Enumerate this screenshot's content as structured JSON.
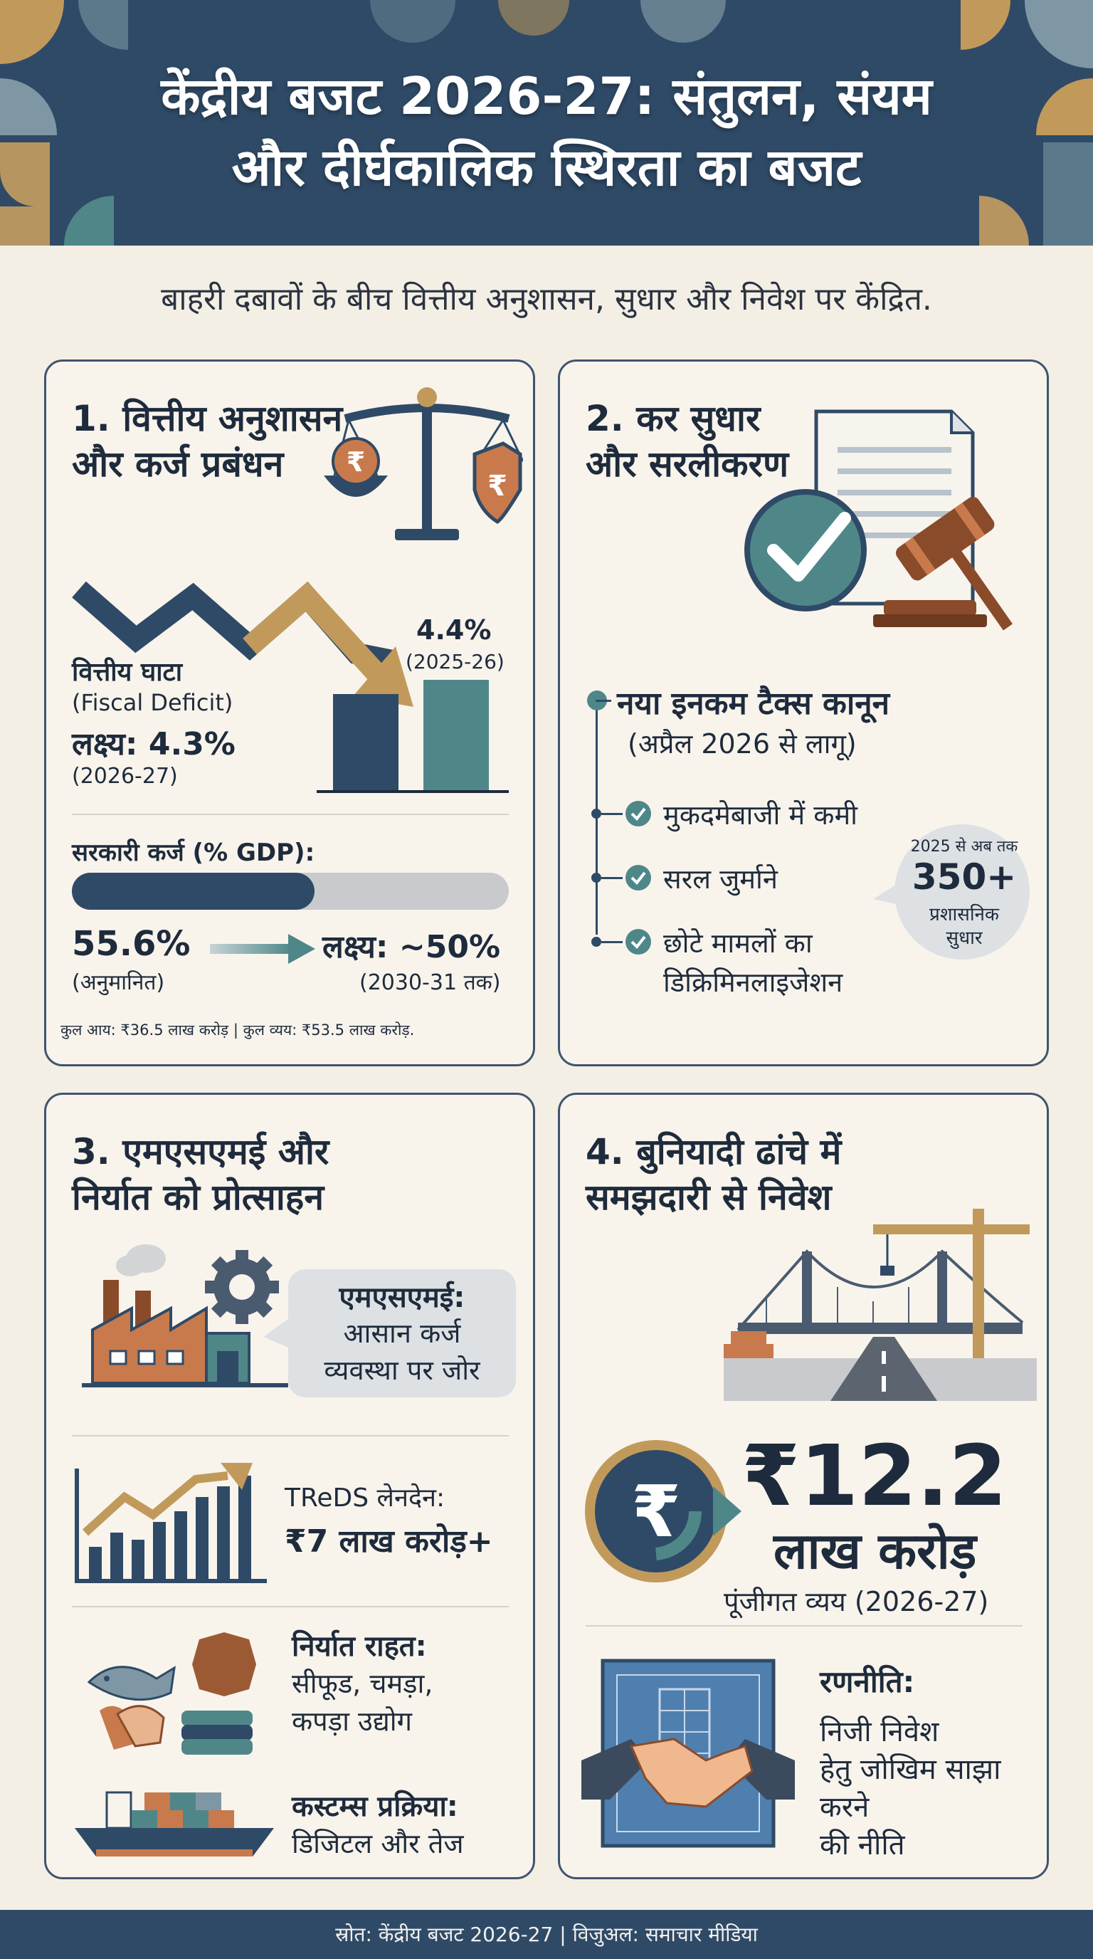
{
  "header": {
    "title_line1": "केंद्रीय बजट 2026-27: संतुलन, संयम",
    "title_line2": "और दीर्घकालिक स्थिरता का बजट"
  },
  "subtitle": "बाहरी दबावों के बीच वित्तीय अनुशासन, सुधार और निवेश पर केंद्रित.",
  "section1": {
    "title_line1": "1. वित्तीय अनुशासन",
    "title_line2": "और कर्ज प्रबंधन",
    "rupee_symbol": "₹",
    "deficit_label": "वित्तीय घाटा",
    "deficit_label_en": "(Fiscal Deficit)",
    "target_label": "लक्ष्य:",
    "target_value": "4.3%",
    "target_year": "(2026-27)",
    "prev_value": "4.4%",
    "prev_year": "(2025-26)",
    "debt_label": "सरकारी कर्ज (% GDP):",
    "debt_progress": 0.556,
    "debt_current": "55.6%",
    "debt_current_note": "(अनुमानित)",
    "debt_target": "लक्ष्य: ~50%",
    "debt_target_note": "(2030-31 तक)",
    "footnote": "कुल आय: ₹36.5 लाख करोड़ | कुल व्यय: ₹53.5 लाख करोड़."
  },
  "section2": {
    "title_line1": "2. कर सुधार",
    "title_line2": "और सरलीकरण",
    "law_title": "नया इनकम टैक्स कानून",
    "law_subtitle": "(अप्रैल 2026 से लागू)",
    "items": [
      "मुकदमेबाजी में कमी",
      "सरल जुर्माने",
      "छोटे मामलों का",
      "डिक्रिमिनलाइजेशन"
    ],
    "bubble_top": "2025 से अब तक",
    "bubble_number": "350+",
    "bubble_line1": "प्रशासनिक",
    "bubble_line2": "सुधार"
  },
  "section3": {
    "title_line1": "3. एमएसएमई और",
    "title_line2": "निर्यात को प्रोत्साहन",
    "msme_line1": "एमएसएमई:",
    "msme_line2": "आसान कर्ज",
    "msme_line3": "व्यवस्था पर जोर",
    "treds_label": "TReDS लेनदेन:",
    "treds_value": "₹7 लाख करोड़+",
    "export_title": "निर्यात राहत:",
    "export_line2": "सीफूड, चमड़ा,",
    "export_line3": "कपड़ा उद्योग",
    "customs_title": "कस्टम्स प्रक्रिया:",
    "customs_line2": "डिजिटल और तेज"
  },
  "section4": {
    "title_line1": "4. बुनियादी ढांचे में",
    "title_line2": "समझदारी से निवेश",
    "rupee_symbol": "₹",
    "capex_value": "₹12.2",
    "capex_unit": "लाख करोड़",
    "capex_label": "पूंजीगत व्यय (2026-27)",
    "strategy_title": "रणनीति:",
    "strategy_line1": "निजी निवेश",
    "strategy_line2": "हेतु जोखिम साझा",
    "strategy_line3": "करने",
    "strategy_line4": "की नीति"
  },
  "footer": "स्रोत: केंद्रीय बजट 2026-27 | विजुअल: समाचार मीडिया",
  "colors": {
    "navy": "#2f4a66",
    "teal": "#4f8789",
    "gold": "#c19a5b",
    "rust": "#c87a4c",
    "cream": "#f4efe5"
  }
}
